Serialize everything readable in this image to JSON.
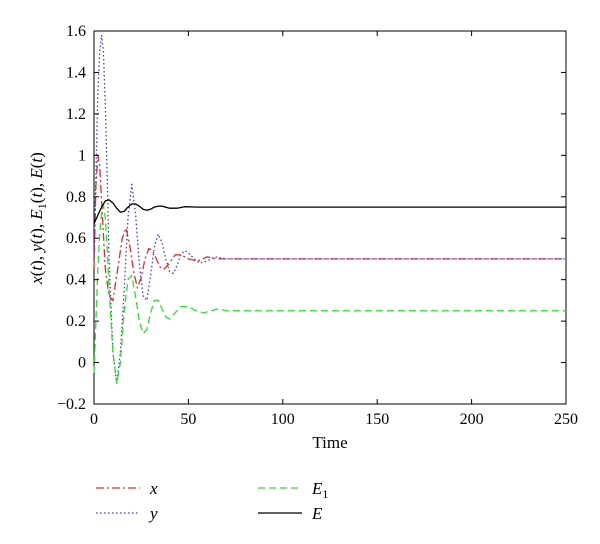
{
  "chart_data": {
    "type": "line",
    "title": "",
    "xlabel": "Time",
    "ylabel_parts": [
      "x",
      "(",
      "t",
      "), ",
      "y",
      "(",
      "t",
      "), ",
      "E",
      "1",
      "(",
      "t",
      "), ",
      "E",
      "(",
      "t",
      ")"
    ],
    "xlim": [
      0,
      250
    ],
    "ylim": [
      -0.2,
      1.6
    ],
    "xticks": [
      0,
      50,
      100,
      150,
      200,
      250
    ],
    "yticks": [
      -0.2,
      0,
      0.2,
      0.4,
      0.6,
      0.8,
      1,
      1.2,
      1.4,
      1.6
    ],
    "ytick_labels": [
      "−0.2",
      "0",
      "0.2",
      "0.4",
      "0.6",
      "0.8",
      "1",
      "1.2",
      "1.4",
      "1.6"
    ],
    "grid": false,
    "legend_position": "bottom",
    "series": [
      {
        "name": "x",
        "color": "#e8292c",
        "dash": "dashdot",
        "points": [
          [
            0,
            0.45
          ],
          [
            1,
            0.85
          ],
          [
            2,
            1.0
          ],
          [
            3,
            0.95
          ],
          [
            4,
            0.78
          ],
          [
            5,
            0.62
          ],
          [
            6,
            0.45
          ],
          [
            8,
            0.32
          ],
          [
            10,
            0.3
          ],
          [
            12,
            0.42
          ],
          [
            15,
            0.6
          ],
          [
            17,
            0.65
          ],
          [
            19,
            0.56
          ],
          [
            21,
            0.44
          ],
          [
            23,
            0.36
          ],
          [
            25,
            0.41
          ],
          [
            27,
            0.5
          ],
          [
            29,
            0.55
          ],
          [
            31,
            0.54
          ],
          [
            33,
            0.5
          ],
          [
            35,
            0.46
          ],
          [
            37,
            0.45
          ],
          [
            40,
            0.48
          ],
          [
            43,
            0.52
          ],
          [
            46,
            0.52
          ],
          [
            50,
            0.5
          ],
          [
            55,
            0.49
          ],
          [
            60,
            0.51
          ],
          [
            65,
            0.5
          ],
          [
            75,
            0.5
          ],
          [
            100,
            0.5
          ],
          [
            150,
            0.5
          ],
          [
            200,
            0.5
          ],
          [
            250,
            0.5
          ]
        ]
      },
      {
        "name": "y",
        "color": "#3d3dd6",
        "dash": "dotted",
        "points": [
          [
            0,
            0.5
          ],
          [
            1,
            0.9
          ],
          [
            2,
            1.3
          ],
          [
            3,
            1.5
          ],
          [
            4,
            1.58
          ],
          [
            5,
            1.5
          ],
          [
            6,
            1.25
          ],
          [
            7,
            0.9
          ],
          [
            8,
            0.5
          ],
          [
            10,
            0.05
          ],
          [
            12,
            -0.1
          ],
          [
            14,
            0.05
          ],
          [
            16,
            0.35
          ],
          [
            18,
            0.7
          ],
          [
            20,
            0.86
          ],
          [
            22,
            0.72
          ],
          [
            24,
            0.48
          ],
          [
            26,
            0.32
          ],
          [
            28,
            0.3
          ],
          [
            30,
            0.42
          ],
          [
            32,
            0.56
          ],
          [
            34,
            0.62
          ],
          [
            36,
            0.58
          ],
          [
            38,
            0.5
          ],
          [
            40,
            0.44
          ],
          [
            42,
            0.43
          ],
          [
            44,
            0.47
          ],
          [
            46,
            0.52
          ],
          [
            48,
            0.54
          ],
          [
            50,
            0.53
          ],
          [
            53,
            0.5
          ],
          [
            56,
            0.48
          ],
          [
            60,
            0.49
          ],
          [
            64,
            0.51
          ],
          [
            70,
            0.5
          ],
          [
            100,
            0.5
          ],
          [
            150,
            0.5
          ],
          [
            200,
            0.5
          ],
          [
            250,
            0.5
          ]
        ]
      },
      {
        "name": "E1",
        "color": "#2ee02e",
        "dash": "dashed",
        "points": [
          [
            0,
            -0.05
          ],
          [
            1,
            0.2
          ],
          [
            2,
            0.45
          ],
          [
            3,
            0.62
          ],
          [
            4,
            0.72
          ],
          [
            5,
            0.76
          ],
          [
            6,
            0.7
          ],
          [
            7,
            0.55
          ],
          [
            8,
            0.35
          ],
          [
            10,
            0.05
          ],
          [
            12,
            -0.1
          ],
          [
            14,
            0.0
          ],
          [
            16,
            0.25
          ],
          [
            18,
            0.4
          ],
          [
            20,
            0.42
          ],
          [
            22,
            0.32
          ],
          [
            24,
            0.2
          ],
          [
            26,
            0.14
          ],
          [
            28,
            0.16
          ],
          [
            30,
            0.24
          ],
          [
            32,
            0.3
          ],
          [
            34,
            0.3
          ],
          [
            36,
            0.26
          ],
          [
            38,
            0.22
          ],
          [
            40,
            0.21
          ],
          [
            43,
            0.24
          ],
          [
            46,
            0.27
          ],
          [
            50,
            0.27
          ],
          [
            54,
            0.25
          ],
          [
            58,
            0.24
          ],
          [
            62,
            0.25
          ],
          [
            66,
            0.26
          ],
          [
            70,
            0.25
          ],
          [
            80,
            0.25
          ],
          [
            100,
            0.25
          ],
          [
            150,
            0.25
          ],
          [
            200,
            0.25
          ],
          [
            250,
            0.25
          ]
        ]
      },
      {
        "name": "E",
        "color": "#000000",
        "dash": "solid",
        "points": [
          [
            0,
            0.67
          ],
          [
            2,
            0.71
          ],
          [
            4,
            0.75
          ],
          [
            6,
            0.78
          ],
          [
            8,
            0.785
          ],
          [
            10,
            0.77
          ],
          [
            12,
            0.745
          ],
          [
            14,
            0.725
          ],
          [
            16,
            0.73
          ],
          [
            18,
            0.75
          ],
          [
            20,
            0.765
          ],
          [
            22,
            0.765
          ],
          [
            24,
            0.755
          ],
          [
            26,
            0.74
          ],
          [
            28,
            0.735
          ],
          [
            30,
            0.74
          ],
          [
            32,
            0.75
          ],
          [
            34,
            0.755
          ],
          [
            36,
            0.755
          ],
          [
            40,
            0.745
          ],
          [
            44,
            0.745
          ],
          [
            48,
            0.752
          ],
          [
            55,
            0.75
          ],
          [
            70,
            0.75
          ],
          [
            100,
            0.75
          ],
          [
            150,
            0.75
          ],
          [
            200,
            0.75
          ],
          [
            250,
            0.75
          ]
        ]
      }
    ],
    "legend": [
      {
        "series": "x",
        "label": "x",
        "sub": ""
      },
      {
        "series": "y",
        "label": "y",
        "sub": ""
      },
      {
        "series": "E1",
        "label": "E",
        "sub": "1"
      },
      {
        "series": "E",
        "label": "E",
        "sub": ""
      }
    ]
  }
}
